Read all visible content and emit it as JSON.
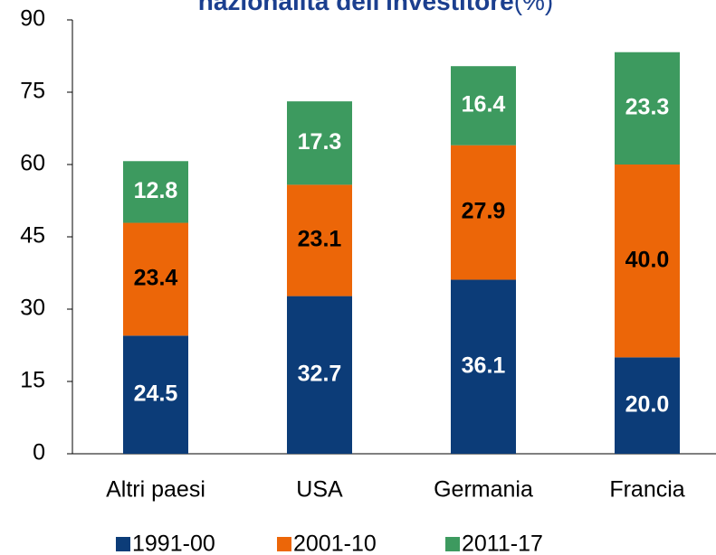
{
  "chart_data": {
    "type": "stacked_bar",
    "title": "nazionalità dell'investitore",
    "title_unit": "(%)",
    "categories": [
      "Altri paesi",
      "USA",
      "Germania",
      "Francia"
    ],
    "series": [
      {
        "name": "1991-00",
        "color": "#0c3c78",
        "values": [
          24.5,
          32.7,
          36.1,
          20.0
        ],
        "value_labels": [
          "24.5",
          "32.7",
          "36.1",
          "20.0"
        ],
        "label_color": "#ffffff"
      },
      {
        "name": "2001-10",
        "color": "#ec6608",
        "values": [
          23.4,
          23.1,
          27.9,
          40.0
        ],
        "value_labels": [
          "23.4",
          "23.1",
          "27.9",
          "40.0"
        ],
        "label_color": "#000000"
      },
      {
        "name": "2011-17",
        "color": "#3d9a5f",
        "values": [
          12.8,
          17.3,
          16.4,
          23.3
        ],
        "value_labels": [
          "12.8",
          "17.3",
          "16.4",
          "23.3"
        ],
        "label_color": "#ffffff"
      }
    ],
    "ylim": [
      0,
      90
    ],
    "yticks": [
      0,
      15,
      30,
      45,
      60,
      75,
      90
    ],
    "legend": "bottom"
  }
}
